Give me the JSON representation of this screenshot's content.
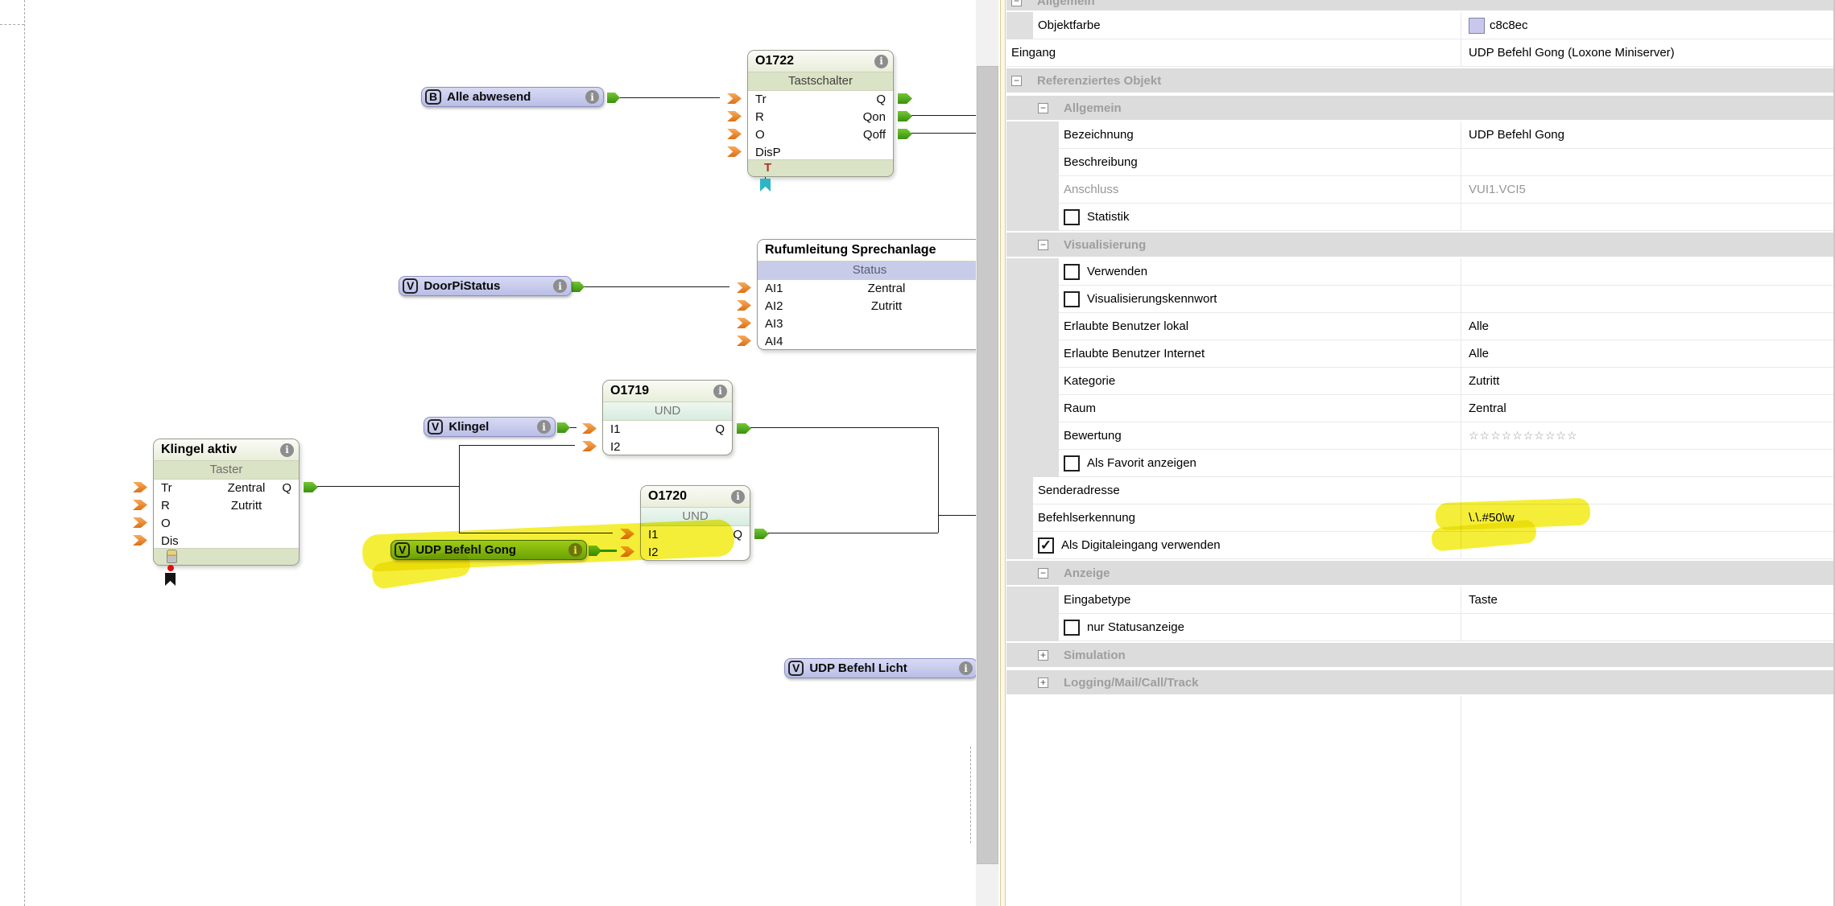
{
  "colors": {
    "object_color_value": "#c8c8ec",
    "label_lavender": "#c8c8ec",
    "selected_label_green": "#8cc52c",
    "highlight_yellow": "#f2e900",
    "input_connector_orange": "#ef8c2a",
    "output_connector_green": "#4ca31a"
  },
  "icons": {
    "info_glyph": "i",
    "checkmark": "✓",
    "star_outline": "☆",
    "collapse_minus": "−",
    "collapse_plus": "+"
  },
  "canvas": {
    "blocks": {
      "o1722": {
        "id": "O1722",
        "type": "Tastschalter",
        "inputs": [
          "Tr",
          "R",
          "O",
          "DisP"
        ],
        "outputs": [
          "Q",
          "Qon",
          "Qoff"
        ],
        "footer_mark": "T"
      },
      "ruf": {
        "title": "Rufumleitung Sprechanlage",
        "band": "Status",
        "inputs": [
          "AI1",
          "AI2",
          "AI3",
          "AI4"
        ],
        "room": "Zentral",
        "category": "Zutritt"
      },
      "o1719": {
        "id": "O1719",
        "type": "UND",
        "inputs": [
          "I1",
          "I2"
        ],
        "outputs": [
          "Q"
        ]
      },
      "o1720": {
        "id": "O1720",
        "type": "UND",
        "inputs": [
          "I1",
          "I2"
        ],
        "outputs": [
          "Q"
        ]
      },
      "taster": {
        "title": "Klingel aktiv",
        "type": "Taster",
        "inputs": [
          "Tr",
          "R",
          "O",
          "Dis"
        ],
        "outputs": [
          "Q"
        ],
        "room": "Zentral",
        "category": "Zutritt"
      }
    },
    "labels": {
      "alle_abwesend": {
        "badge": "B",
        "text": "Alle abwesend"
      },
      "doorpi": {
        "badge": "V",
        "text": "DoorPiStatus"
      },
      "klingel": {
        "badge": "V",
        "text": "Klingel"
      },
      "udp_gong": {
        "badge": "V",
        "text": "UDP Befehl Gong"
      },
      "udp_licht": {
        "badge": "V",
        "text": "UDP Befehl Licht"
      }
    }
  },
  "panel": {
    "rows": [
      {
        "t": "section_cut",
        "level": 0,
        "label": "Allgemein",
        "collapse": "minus"
      },
      {
        "t": "row",
        "level": 1,
        "label": "Objektfarbe",
        "value": "c8c8ec",
        "swatch": "#c8c8ec"
      },
      {
        "t": "row",
        "level": 0,
        "label": "Eingang",
        "value": "UDP Befehl Gong (Loxone Miniserver)"
      },
      {
        "t": "section",
        "level": 0,
        "label": "Referenziertes Objekt",
        "collapse": "minus"
      },
      {
        "t": "section",
        "level": 1,
        "label": "Allgemein",
        "collapse": "minus"
      },
      {
        "t": "row",
        "level": 2,
        "label": "Bezeichnung",
        "value": "UDP Befehl Gong"
      },
      {
        "t": "row",
        "level": 2,
        "label": "Beschreibung",
        "value": ""
      },
      {
        "t": "row",
        "level": 2,
        "label": "Anschluss",
        "value": "VUI1.VCI5",
        "disabled": true
      },
      {
        "t": "check",
        "level": 2,
        "label": "Statistik",
        "checked": false
      },
      {
        "t": "section",
        "level": 1,
        "label": "Visualisierung",
        "collapse": "minus"
      },
      {
        "t": "check",
        "level": 2,
        "label": "Verwenden",
        "checked": false
      },
      {
        "t": "check",
        "level": 2,
        "label": "Visualisierungskennwort",
        "checked": false
      },
      {
        "t": "row",
        "level": 2,
        "label": "Erlaubte Benutzer lokal",
        "value": "Alle"
      },
      {
        "t": "row",
        "level": 2,
        "label": "Erlaubte Benutzer Internet",
        "value": "Alle"
      },
      {
        "t": "row",
        "level": 2,
        "label": "Kategorie",
        "value": "Zutritt"
      },
      {
        "t": "row",
        "level": 2,
        "label": "Raum",
        "value": "Zentral"
      },
      {
        "t": "row",
        "level": 2,
        "label": "Bewertung",
        "stars": 10
      },
      {
        "t": "check",
        "level": 2,
        "label": "Als Favorit anzeigen",
        "checked": false
      },
      {
        "t": "row",
        "level": 1,
        "label": "Senderadresse",
        "value": ""
      },
      {
        "t": "row",
        "level": 1,
        "label": "Befehlserkennung",
        "value": "\\.\\.#50\\w",
        "highlight": true
      },
      {
        "t": "check",
        "level": 1,
        "label": "Als Digitaleingang verwenden",
        "checked": true
      },
      {
        "t": "section",
        "level": 1,
        "label": "Anzeige",
        "collapse": "minus"
      },
      {
        "t": "row",
        "level": 2,
        "label": "Eingabetype",
        "value": "Taste"
      },
      {
        "t": "check",
        "level": 2,
        "label": "nur Statusanzeige",
        "checked": false
      },
      {
        "t": "section",
        "level": 1,
        "label": "Simulation",
        "collapse": "plus"
      },
      {
        "t": "section",
        "level": 1,
        "label": "Logging/Mail/Call/Track",
        "collapse": "plus"
      }
    ]
  }
}
